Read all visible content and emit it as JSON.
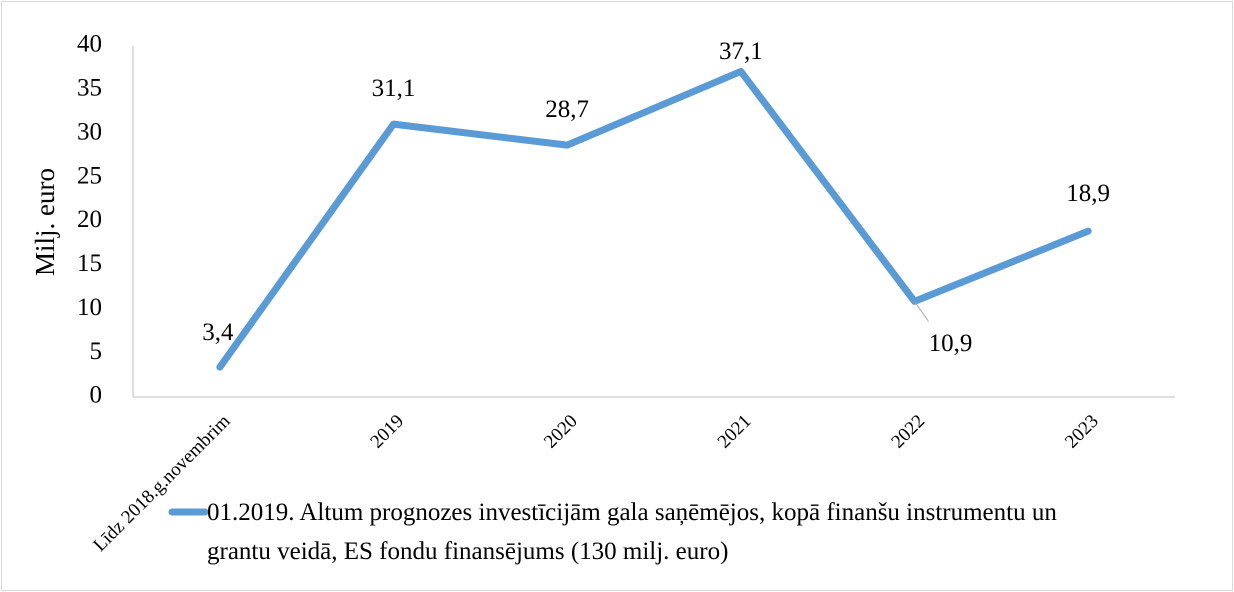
{
  "chart_data": {
    "type": "line",
    "ylabel": "Milj. euro",
    "categories": [
      "Līdz 2018.g.novembrim",
      "2019",
      "2020",
      "2021",
      "2022",
      "2023"
    ],
    "series": [
      {
        "name": "01.2019. Altum prognozes investīcijām gala saņēmējos, kopā finanšu instrumentu un grantu veidā, ES fondu finansējums (130 milj. euro)",
        "color": "#5b9bd5",
        "values": [
          3.4,
          31.1,
          28.7,
          37.1,
          10.9,
          18.9
        ],
        "value_labels": [
          "3,4",
          "31,1",
          "28,7",
          "37,1",
          "10,9",
          "18,9"
        ]
      }
    ],
    "ylim": [
      0,
      40
    ],
    "yticks": [
      0,
      5,
      10,
      15,
      20,
      25,
      30,
      35,
      40
    ],
    "grid": false,
    "legend": "bottom"
  }
}
